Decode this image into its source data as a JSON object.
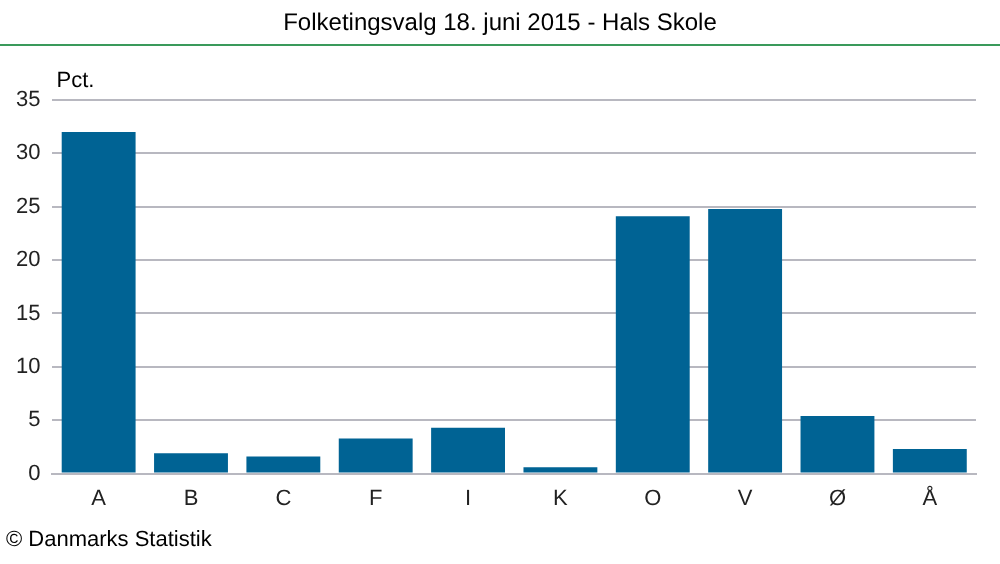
{
  "chart_data": {
    "type": "bar",
    "title": "Folketingsvalg 18. juni 2015 - Hals Skole",
    "ylabel": "Pct.",
    "categories": [
      "A",
      "B",
      "C",
      "F",
      "I",
      "K",
      "O",
      "V",
      "Ø",
      "Å"
    ],
    "values": [
      32.0,
      1.9,
      1.6,
      3.3,
      4.3,
      0.6,
      24.1,
      24.8,
      5.4,
      2.3
    ],
    "color": "#006394",
    "ylim": [
      0,
      35
    ],
    "yticks": [
      0,
      5,
      10,
      15,
      20,
      25,
      30,
      35
    ],
    "grid": "y",
    "legend": false,
    "annotations": [
      "© Danmarks Statistik"
    ]
  }
}
